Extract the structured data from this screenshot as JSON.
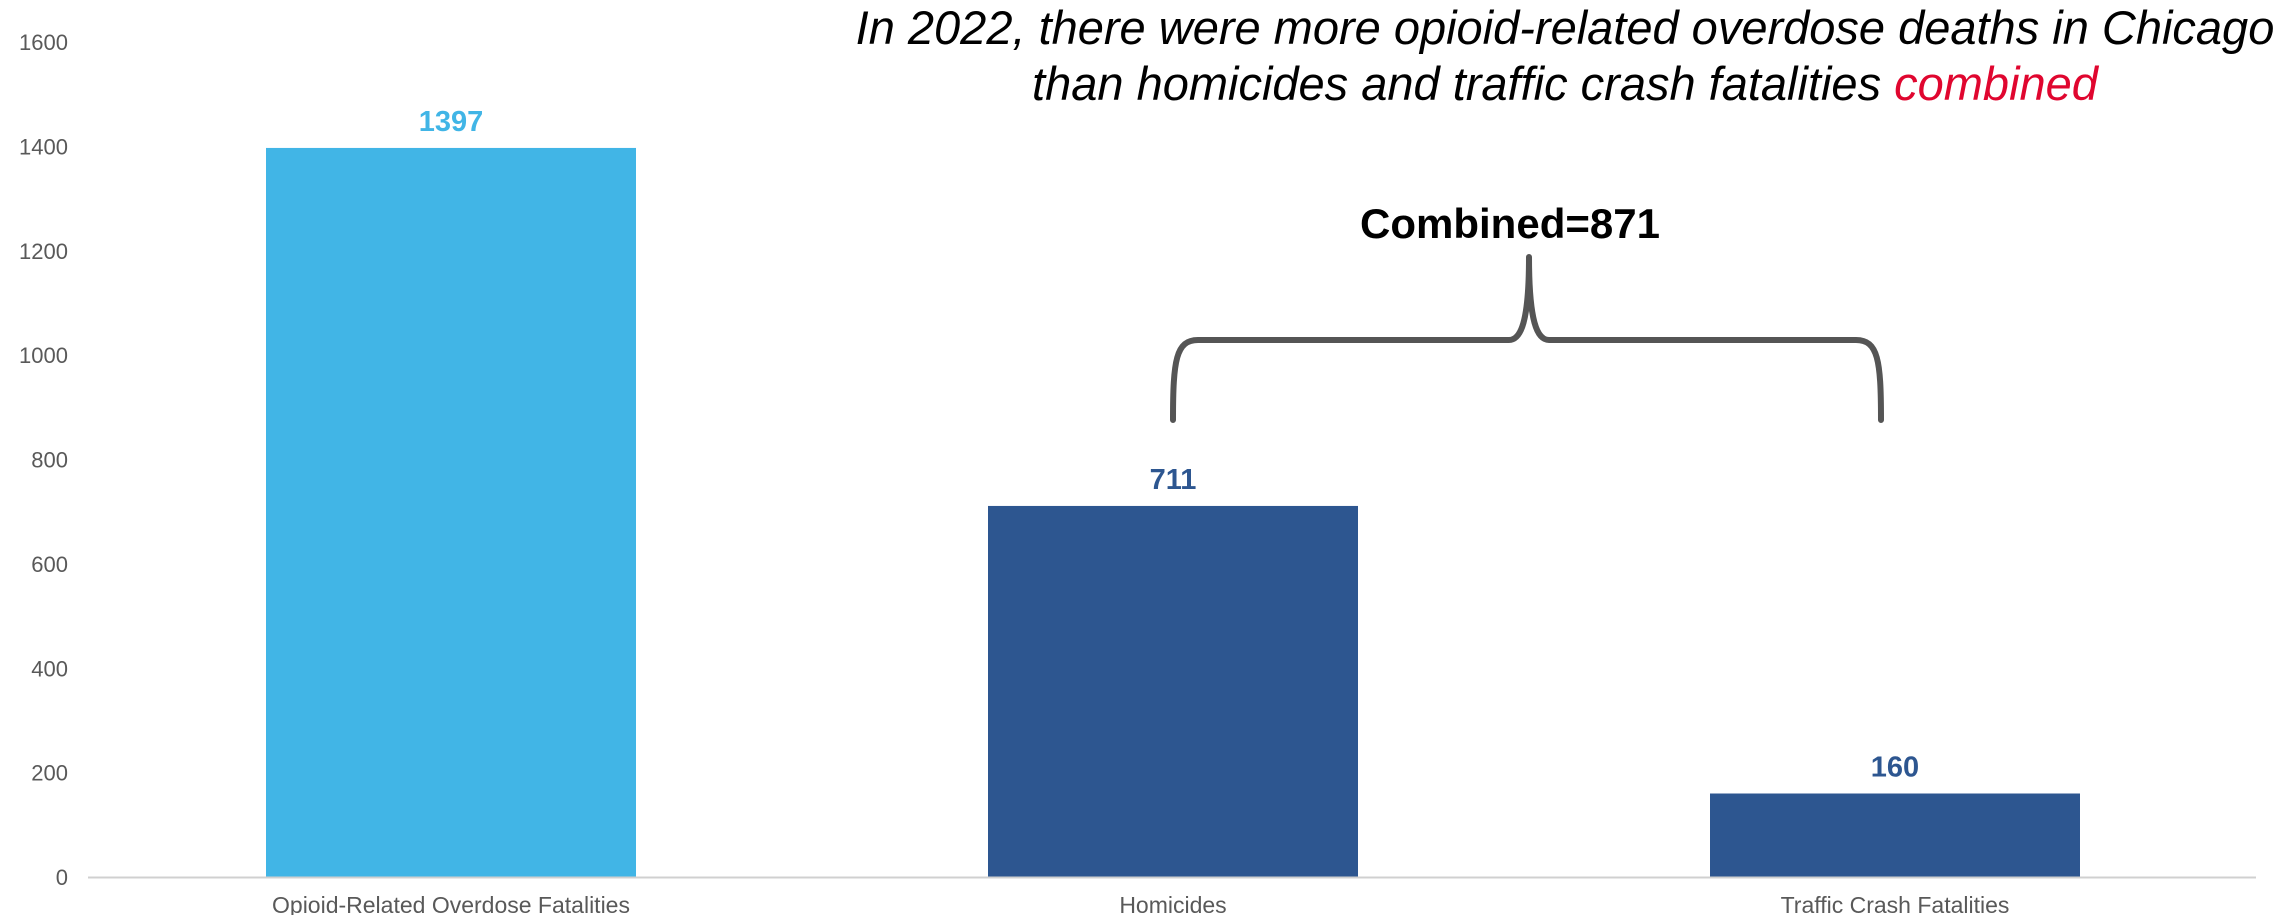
{
  "chart_data": {
    "type": "bar",
    "title": {
      "line1": "In 2022, there were more opioid-related overdose deaths in Chicago",
      "line2_prefix": "than homicides and traffic crash fatalities ",
      "line2_highlight": "combined"
    },
    "categories": [
      "Opioid-Related Overdose Fatalities",
      "Homicides",
      "Traffic Crash Fatalities"
    ],
    "values": [
      1397,
      711,
      160
    ],
    "value_labels": [
      "1397",
      "711",
      "160"
    ],
    "ylim": [
      0,
      1600
    ],
    "yticks": [
      0,
      200,
      400,
      600,
      800,
      1000,
      1200,
      1400,
      1600
    ],
    "ytick_labels": [
      "0",
      "200",
      "400",
      "600",
      "800",
      "1000",
      "1200",
      "1400",
      "1600"
    ],
    "xlabel": "",
    "ylabel": "",
    "grid": false,
    "legend": "none",
    "annotation": {
      "text": "Combined=871",
      "brace_spans": [
        "Homicides",
        "Traffic Crash Fatalities"
      ]
    },
    "colors": {
      "opioid_bar": "#41b5e6",
      "other_bars": "#2d5690",
      "highlight_text": "#e0062f",
      "axis_text": "#595959",
      "axis_line": "#d0d0d0",
      "brace": "#555555"
    }
  }
}
